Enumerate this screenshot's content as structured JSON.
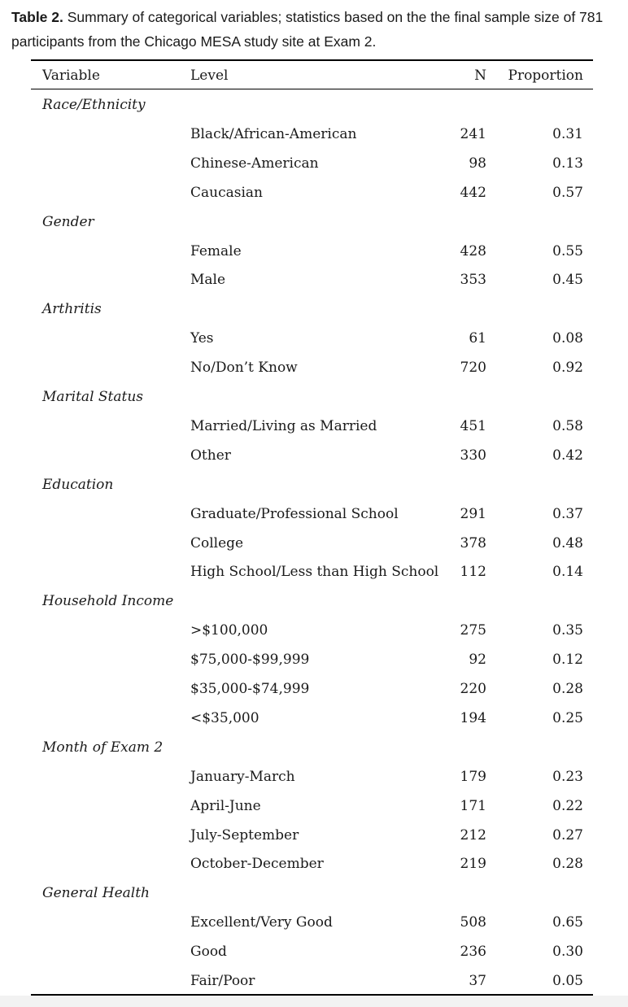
{
  "caption": {
    "label": "Table 2.",
    "text": " Summary of categorical variables; statistics based on the the final sample size of 781 participants from the Chicago MESA study site at Exam 2."
  },
  "table": {
    "headers": {
      "variable": "Variable",
      "level": "Level",
      "n": "N",
      "proportion": "Proportion"
    },
    "rows": [
      {
        "variable": "Race/Ethnicity",
        "level": "",
        "n": "",
        "proportion": ""
      },
      {
        "variable": "",
        "level": "Black/African-American",
        "n": "241",
        "proportion": "0.31"
      },
      {
        "variable": "",
        "level": "Chinese-American",
        "n": "98",
        "proportion": "0.13"
      },
      {
        "variable": "",
        "level": "Caucasian",
        "n": "442",
        "proportion": "0.57"
      },
      {
        "variable": "Gender",
        "level": "",
        "n": "",
        "proportion": ""
      },
      {
        "variable": "",
        "level": "Female",
        "n": "428",
        "proportion": "0.55"
      },
      {
        "variable": "",
        "level": "Male",
        "n": "353",
        "proportion": "0.45"
      },
      {
        "variable": "Arthritis",
        "level": "",
        "n": "",
        "proportion": ""
      },
      {
        "variable": "",
        "level": "Yes",
        "n": "61",
        "proportion": "0.08"
      },
      {
        "variable": "",
        "level": "No/Don’t Know",
        "n": "720",
        "proportion": "0.92"
      },
      {
        "variable": "Marital Status",
        "level": "",
        "n": "",
        "proportion": ""
      },
      {
        "variable": "",
        "level": "Married/Living as Married",
        "n": "451",
        "proportion": "0.58"
      },
      {
        "variable": "",
        "level": "Other",
        "n": "330",
        "proportion": "0.42"
      },
      {
        "variable": "Education",
        "level": "",
        "n": "",
        "proportion": ""
      },
      {
        "variable": "",
        "level": "Graduate/Professional School",
        "n": "291",
        "proportion": "0.37"
      },
      {
        "variable": "",
        "level": "College",
        "n": "378",
        "proportion": "0.48"
      },
      {
        "variable": "",
        "level": "High School/Less than High School",
        "n": "112",
        "proportion": "0.14"
      },
      {
        "variable": "Household Income",
        "level": "",
        "n": "",
        "proportion": ""
      },
      {
        "variable": "",
        "level": ">$100,000",
        "n": "275",
        "proportion": "0.35"
      },
      {
        "variable": "",
        "level": "$75,000-$99,999",
        "n": "92",
        "proportion": "0.12"
      },
      {
        "variable": "",
        "level": "$35,000-$74,999",
        "n": "220",
        "proportion": "0.28"
      },
      {
        "variable": "",
        "level": "<$35,000",
        "n": "194",
        "proportion": "0.25"
      },
      {
        "variable": "Month of Exam 2",
        "level": "",
        "n": "",
        "proportion": ""
      },
      {
        "variable": "",
        "level": "January-March",
        "n": "179",
        "proportion": "0.23"
      },
      {
        "variable": "",
        "level": "April-June",
        "n": "171",
        "proportion": "0.22"
      },
      {
        "variable": "",
        "level": "July-September",
        "n": "212",
        "proportion": "0.27"
      },
      {
        "variable": "",
        "level": "October-December",
        "n": "219",
        "proportion": "0.28"
      },
      {
        "variable": "General Health",
        "level": "",
        "n": "",
        "proportion": ""
      },
      {
        "variable": "",
        "level": "Excellent/Very Good",
        "n": "508",
        "proportion": "0.65"
      },
      {
        "variable": "",
        "level": "Good",
        "n": "236",
        "proportion": "0.30"
      },
      {
        "variable": "",
        "level": "Fair/Poor",
        "n": "37",
        "proportion": "0.05"
      }
    ]
  }
}
